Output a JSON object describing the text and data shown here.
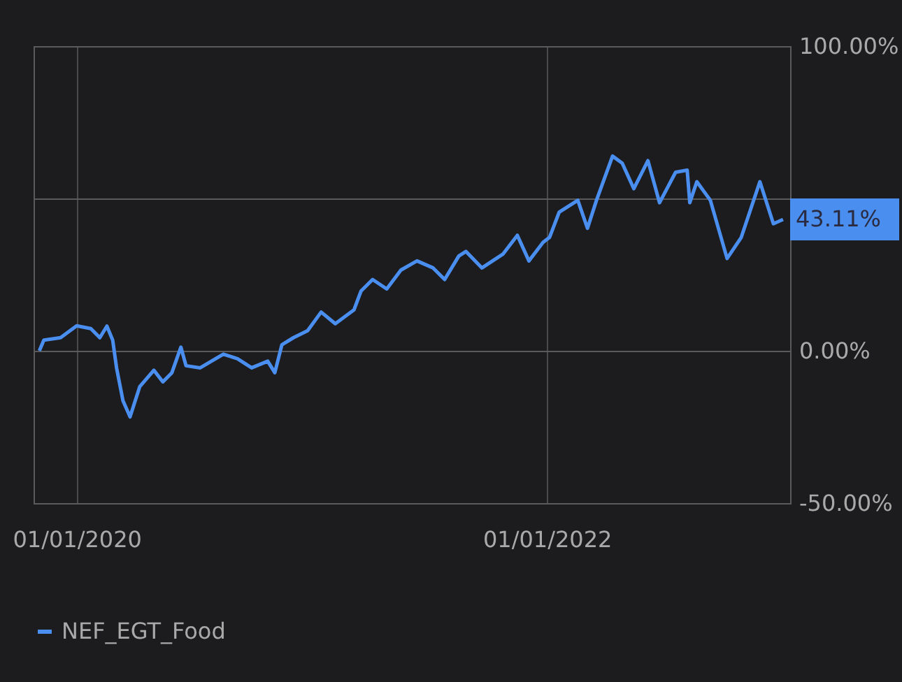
{
  "chart_data": {
    "type": "line",
    "legend": "bottom",
    "grid": true,
    "line_style": "solid",
    "marker": "none",
    "x": [
      "2019-11-04",
      "2019-11-11",
      "2019-12-07",
      "2020-01-01",
      "2020-01-23",
      "2020-02-06",
      "2020-02-17",
      "2020-02-26",
      "2020-03-03",
      "2020-03-13",
      "2020-03-24",
      "2020-04-08",
      "2020-04-30",
      "2020-05-14",
      "2020-05-28",
      "2020-06-11",
      "2020-06-19",
      "2020-07-11",
      "2020-08-16",
      "2020-09-07",
      "2020-09-29",
      "2020-10-24",
      "2020-11-04",
      "2020-11-15",
      "2020-12-03",
      "2020-12-25",
      "2021-01-15",
      "2021-02-06",
      "2021-03-07",
      "2021-03-18",
      "2021-04-05",
      "2021-04-27",
      "2021-05-19",
      "2021-06-13",
      "2021-07-08",
      "2021-07-26",
      "2021-08-17",
      "2021-08-28",
      "2021-09-22",
      "2021-10-25",
      "2021-11-16",
      "2021-12-04",
      "2021-12-26",
      "2022-01-05",
      "2022-01-20",
      "2022-02-18",
      "2022-03-05",
      "2022-03-19",
      "2022-04-13",
      "2022-04-28",
      "2022-05-16",
      "2022-06-07",
      "2022-06-25",
      "2022-07-20",
      "2022-08-07",
      "2022-08-11",
      "2022-08-22",
      "2022-09-12",
      "2022-10-08",
      "2022-10-30",
      "2022-11-28",
      "2022-12-19",
      "2023-01-03"
    ],
    "series": [
      {
        "name": "NEF_EGT_Food",
        "color": "#4a8fef",
        "values": [
          0,
          3.5,
          4.3,
          8.2,
          7.3,
          4.3,
          8.1,
          3.5,
          -5.6,
          -16.4,
          -21.7,
          -11.8,
          -6.4,
          -10.2,
          -7.2,
          1.2,
          -4.9,
          -5.6,
          -1.1,
          -2.6,
          -5.6,
          -3.4,
          -7.2,
          2.0,
          4.3,
          6.6,
          12.7,
          8.9,
          13.4,
          19.6,
          23.4,
          20.3,
          26.5,
          29.5,
          27.2,
          23.4,
          31.1,
          32.6,
          27.2,
          31.8,
          37.9,
          29.5,
          35.6,
          37.2,
          45.5,
          49.4,
          40.2,
          49.4,
          63.9,
          61.6,
          53.2,
          62.4,
          48.6,
          58.6,
          59.3,
          48.6,
          55.5,
          49.4,
          30.3,
          37.2,
          55.5,
          41.7,
          43.11
        ]
      }
    ],
    "xlim": [
      "2019-10-26",
      "2023-01-14"
    ],
    "xticks": [
      {
        "value": "2020-01-01",
        "label": "01/01/2020"
      },
      {
        "value": "2022-01-01",
        "label": "01/01/2022"
      }
    ],
    "ylim": [
      -50,
      100
    ],
    "yticks": [
      {
        "value": 100,
        "label": "100.00%"
      },
      {
        "value": 50,
        "label": null
      },
      {
        "value": 0,
        "label": "0.00%"
      },
      {
        "value": -50,
        "label": "-50.00%"
      }
    ],
    "annotations": [
      "43.11%"
    ]
  }
}
